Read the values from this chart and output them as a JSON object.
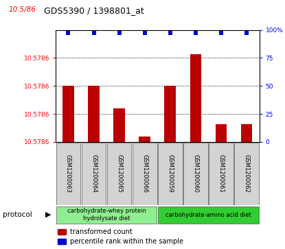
{
  "title": "GDS5390 / 1398801_at",
  "title_prefix": "10.5/86",
  "samples": [
    "GSM1200063",
    "GSM1200064",
    "GSM1200065",
    "GSM1200066",
    "GSM1200059",
    "GSM1200060",
    "GSM1200061",
    "GSM1200062"
  ],
  "bar_values": [
    50,
    50,
    30,
    5,
    50,
    78,
    16,
    16
  ],
  "percentile_values": [
    100,
    100,
    100,
    100,
    100,
    100,
    100,
    100
  ],
  "bar_color": "#bb0000",
  "percentile_color": "#0000cc",
  "ytick_labels_left": [
    "10.5786",
    "10.5786",
    "10.5786",
    "10.5786",
    "10.5786"
  ],
  "groups": [
    {
      "label": "carbohydrate-whey protein\nhydrolysate diet",
      "indices": [
        0,
        1,
        2,
        3
      ],
      "color": "#90ee90"
    },
    {
      "label": "carbohydrate-amino acid diet",
      "indices": [
        4,
        5,
        6,
        7
      ],
      "color": "#32cd32"
    }
  ],
  "legend_items": [
    {
      "label": "transformed count",
      "color": "#bb0000"
    },
    {
      "label": "percentile rank within the sample",
      "color": "#0000cc"
    }
  ],
  "background_color": "#ffffff",
  "sample_box_color": "#d3d3d3",
  "bar_width": 0.45,
  "ylim": [
    0,
    100
  ]
}
